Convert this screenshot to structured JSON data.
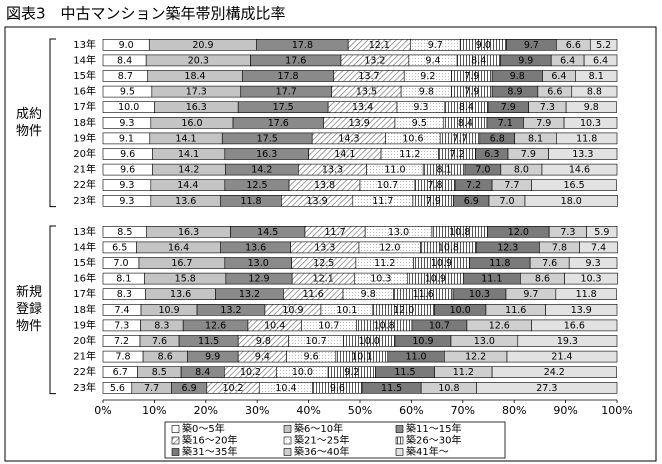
{
  "chart_data": {
    "type": "stacked_barh_grouped",
    "title": "図表3　中古マンション築年帯別構成比率",
    "xlim": [
      0,
      100
    ],
    "xticks": [
      {
        "value": 0,
        "label": "0%"
      },
      {
        "value": 10,
        "label": "10%"
      },
      {
        "value": 20,
        "label": "20%"
      },
      {
        "value": 30,
        "label": "30%"
      },
      {
        "value": 40,
        "label": "40%"
      },
      {
        "value": 50,
        "label": "50%"
      },
      {
        "value": 60,
        "label": "60%"
      },
      {
        "value": 70,
        "label": "70%"
      },
      {
        "value": 80,
        "label": "80%"
      },
      {
        "value": 90,
        "label": "90%"
      },
      {
        "value": 100,
        "label": "100%"
      }
    ],
    "series": [
      {
        "name": "築0～5年",
        "color": "#ffffff"
      },
      {
        "name": "築6～10年",
        "color": "#c4c4c4"
      },
      {
        "name": "築11～15年",
        "color": "#8a8a8a"
      },
      {
        "name": "築16～20年",
        "color": "#ffffff",
        "pattern": "diagonal"
      },
      {
        "name": "築21～25年",
        "color": "#ffffff",
        "pattern": "dots"
      },
      {
        "name": "築26～30年",
        "color": "#ffffff",
        "pattern": "vertical"
      },
      {
        "name": "築31～35年",
        "color": "#7a7a7a"
      },
      {
        "name": "築36～40年",
        "color": "#cfcfcf"
      },
      {
        "name": "築41年～",
        "color": "#e2e2e2"
      }
    ],
    "groups": [
      {
        "name": "成約物件",
        "categories": [
          "13年",
          "14年",
          "15年",
          "16年",
          "17年",
          "18年",
          "19年",
          "20年",
          "21年",
          "22年",
          "23年"
        ],
        "series": [
          {
            "values": [
              9.0,
              8.4,
              8.7,
              9.5,
              10.0,
              9.3,
              9.1,
              9.6,
              9.6,
              9.3,
              9.3
            ],
            "value_labels": [
              "9.0",
              "8.4",
              "8.7",
              "9.5",
              "10.0",
              "9.3",
              "9.1",
              "9.6",
              "9.6",
              "9.3",
              "9.3"
            ]
          },
          {
            "values": [
              20.9,
              20.3,
              18.4,
              17.3,
              16.3,
              16.0,
              14.1,
              14.1,
              14.2,
              14.4,
              13.6
            ],
            "value_labels": [
              "20.9",
              "20.3",
              "18.4",
              "17.3",
              "16.3",
              "16.0",
              "14.1",
              "14.1",
              "14.2",
              "14.4",
              "13.6"
            ]
          },
          {
            "values": [
              17.8,
              17.6,
              17.8,
              17.7,
              17.5,
              17.6,
              17.5,
              16.3,
              14.2,
              12.5,
              11.8
            ],
            "value_labels": [
              "17.8",
              "17.6",
              "17.8",
              "17.7",
              "17.5",
              "17.6",
              "17.5",
              "16.3",
              "14.2",
              "12.5",
              "11.8"
            ]
          },
          {
            "values": [
              12.1,
              13.2,
              13.7,
              13.5,
              13.4,
              13.9,
              14.3,
              14.1,
              13.3,
              13.8,
              13.9
            ],
            "value_labels": [
              "12.1",
              "13.2",
              "13.7",
              "13.5",
              "13.4",
              "13.9",
              "14.3",
              "14.1",
              "13.3",
              "13.8",
              "13.9"
            ]
          },
          {
            "values": [
              9.7,
              9.4,
              9.2,
              9.8,
              9.3,
              9.5,
              10.6,
              11.2,
              11.0,
              10.7,
              11.7
            ],
            "value_labels": [
              "9.7",
              "9.4",
              "9.2",
              "9.8",
              "9.3",
              "9.5",
              "10.6",
              "11.2",
              "11.0",
              "10.7",
              "11.7"
            ]
          },
          {
            "values": [
              9.0,
              8.4,
              7.9,
              7.9,
              8.4,
              8.4,
              7.7,
              7.2,
              8.1,
              7.8,
              7.9
            ],
            "value_labels": [
              "9.0",
              "8.4",
              "7.9",
              "7.9",
              "8.4",
              "8.4",
              "7.7",
              "7.2",
              "8.1",
              "7.8",
              "7.9"
            ]
          },
          {
            "values": [
              9.7,
              9.9,
              9.8,
              8.9,
              7.9,
              7.1,
              6.8,
              6.3,
              7.0,
              7.2,
              6.9
            ],
            "value_labels": [
              "9.7",
              "9.9",
              "9.8",
              "8.9",
              "7.9",
              "7.1",
              "6.8",
              "6.3",
              "7.0",
              "7.2",
              "6.9"
            ]
          },
          {
            "values": [
              6.6,
              6.4,
              6.4,
              6.6,
              7.3,
              7.9,
              8.1,
              7.9,
              8.0,
              7.7,
              7.0
            ],
            "value_labels": [
              "6.6",
              "6.4",
              "6.4",
              "6.6",
              "7.3",
              "7.9",
              "8.1",
              "7.9",
              "8.0",
              "7.7",
              "7.0"
            ]
          },
          {
            "values": [
              5.2,
              6.4,
              8.1,
              8.8,
              9.8,
              10.3,
              11.8,
              13.3,
              14.6,
              16.5,
              18.0
            ],
            "value_labels": [
              "5.2",
              "6.4",
              "8.1",
              "8.8",
              "9.8",
              "10.3",
              "11.8",
              "13.3",
              "14.6",
              "16.5",
              "18.0"
            ]
          }
        ]
      },
      {
        "name": "新規登録物件",
        "categories": [
          "13年",
          "14年",
          "15年",
          "16年",
          "17年",
          "18年",
          "19年",
          "20年",
          "21年",
          "22年",
          "23年"
        ],
        "series": [
          {
            "values": [
              8.5,
              6.5,
              7.0,
              8.1,
              8.3,
              7.4,
              7.3,
              7.2,
              7.8,
              6.7,
              5.6
            ],
            "value_labels": [
              "8.5",
              "6.5",
              "7.0",
              "8.1",
              "8.3",
              "7.4",
              "7.3",
              "7.2",
              "7.8",
              "6.7",
              "5.6"
            ]
          },
          {
            "values": [
              16.3,
              16.4,
              16.7,
              15.8,
              13.6,
              10.9,
              8.3,
              7.6,
              8.6,
              8.5,
              7.7
            ],
            "value_labels": [
              "16.3",
              "16.4",
              "16.7",
              "15.8",
              "13.6",
              "10.9",
              "8.3",
              "7.6",
              "8.6",
              "8.5",
              "7.7"
            ]
          },
          {
            "values": [
              14.5,
              13.6,
              13.0,
              12.9,
              13.2,
              13.2,
              12.6,
              11.5,
              9.9,
              8.4,
              6.9
            ],
            "value_labels": [
              "14.5",
              "13.6",
              "13.0",
              "12.9",
              "13.2",
              "13.2",
              "12.6",
              "11.5",
              "9.9",
              "8.4",
              "6.9"
            ]
          },
          {
            "values": [
              11.7,
              13.3,
              12.5,
              12.1,
              11.6,
              10.9,
              10.4,
              9.8,
              9.4,
              10.2,
              10.2
            ],
            "value_labels": [
              "11.7",
              "13.3",
              "12.5",
              "12.1",
              "11.6",
              "10.9",
              "10.4",
              "9.8",
              "9.4",
              "10.2",
              "10.2"
            ]
          },
          {
            "values": [
              13.0,
              12.0,
              11.2,
              10.3,
              9.8,
              10.1,
              10.7,
              10.7,
              9.6,
              10.0,
              10.4
            ],
            "value_labels": [
              "13.0",
              "12.0",
              "11.2",
              "10.3",
              "9.8",
              "10.1",
              "10.7",
              "10.7",
              "9.6",
              "10.0",
              "10.4"
            ]
          },
          {
            "values": [
              10.8,
              10.8,
              10.9,
              10.9,
              11.6,
              12.0,
              10.8,
              10.0,
              10.1,
              9.2,
              9.6
            ],
            "value_labels": [
              "10.8",
              "10.8",
              "10.9",
              "10.9",
              "11.6",
              "12.0",
              "10.8",
              "10.0",
              "10.1",
              "9.2",
              "9.6"
            ]
          },
          {
            "values": [
              12.0,
              12.3,
              11.8,
              11.1,
              10.3,
              10.0,
              10.7,
              10.9,
              11.0,
              11.5,
              11.5
            ],
            "value_labels": [
              "12.0",
              "12.3",
              "11.8",
              "11.1",
              "10.3",
              "10.0",
              "10.7",
              "10.9",
              "11.0",
              "11.5",
              "11.5"
            ]
          },
          {
            "values": [
              7.3,
              7.8,
              7.6,
              8.6,
              9.7,
              11.6,
              12.6,
              13.0,
              12.2,
              11.2,
              10.8
            ],
            "value_labels": [
              "7.3",
              "7.8",
              "7.6",
              "8.6",
              "9.7",
              "11.6",
              "12.6",
              "13.0",
              "12.2",
              "11.2",
              "10.8"
            ]
          },
          {
            "values": [
              5.9,
              7.4,
              9.3,
              10.3,
              11.8,
              13.9,
              16.6,
              19.3,
              21.4,
              24.2,
              27.3
            ],
            "value_labels": [
              "5.9",
              "7.4",
              "9.3",
              "10.3",
              "11.8",
              "13.9",
              "16.6",
              "19.3",
              "21.4",
              "24.2",
              "27.3"
            ]
          }
        ]
      }
    ]
  }
}
